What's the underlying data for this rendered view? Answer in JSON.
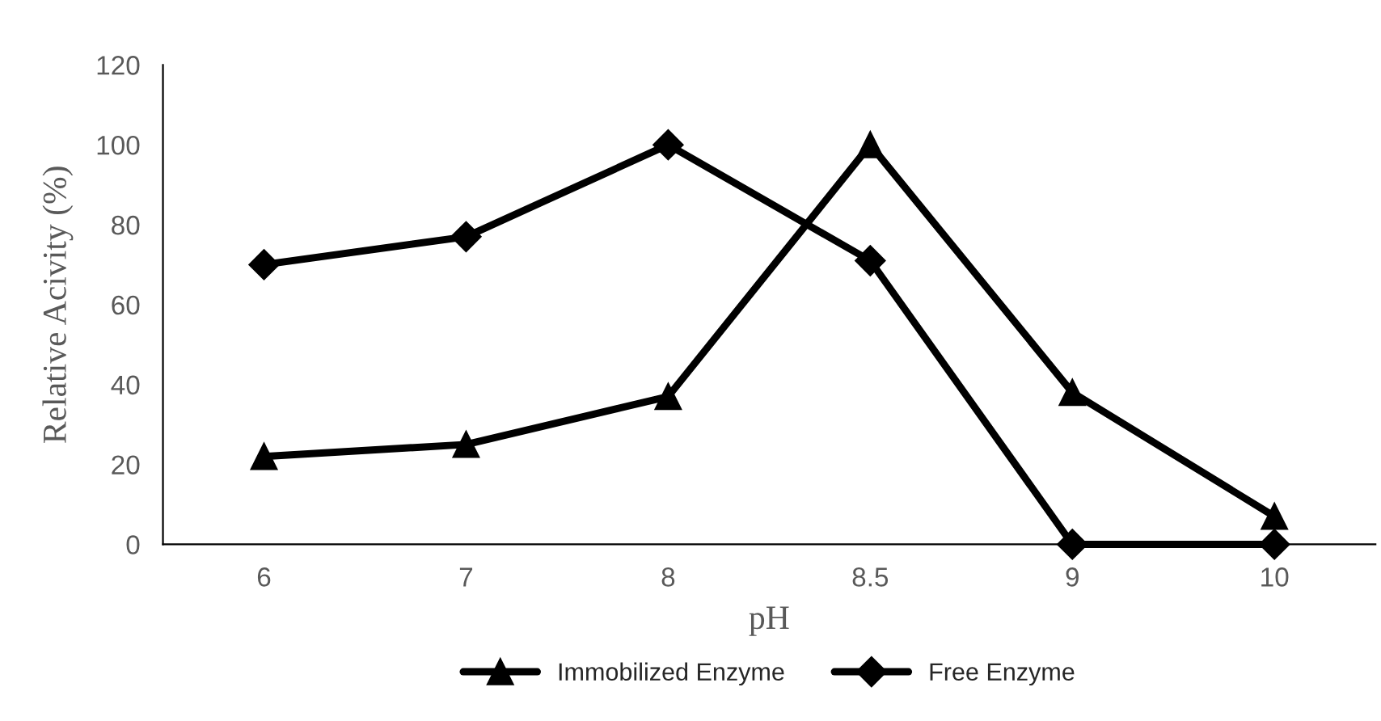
{
  "chart_data": {
    "type": "line",
    "xlabel": "pH",
    "ylabel": "Relative Acivity (%)",
    "categories": [
      "6",
      "7",
      "8",
      "8.5",
      "9",
      "10"
    ],
    "series": [
      {
        "name": "Immobilized Enzyme",
        "color": "#000000",
        "marker": "triangle",
        "values": [
          22,
          25,
          37,
          100,
          38,
          7
        ]
      },
      {
        "name": "Free Enzyme",
        "color": "#000000",
        "marker": "diamond",
        "values": [
          70,
          77,
          100,
          71,
          0,
          0
        ]
      }
    ],
    "ylim": [
      0,
      120
    ],
    "yticks": [
      0,
      20,
      40,
      60,
      80,
      100,
      120
    ],
    "grid": false,
    "legend": "bottom",
    "line_style": "solid"
  }
}
